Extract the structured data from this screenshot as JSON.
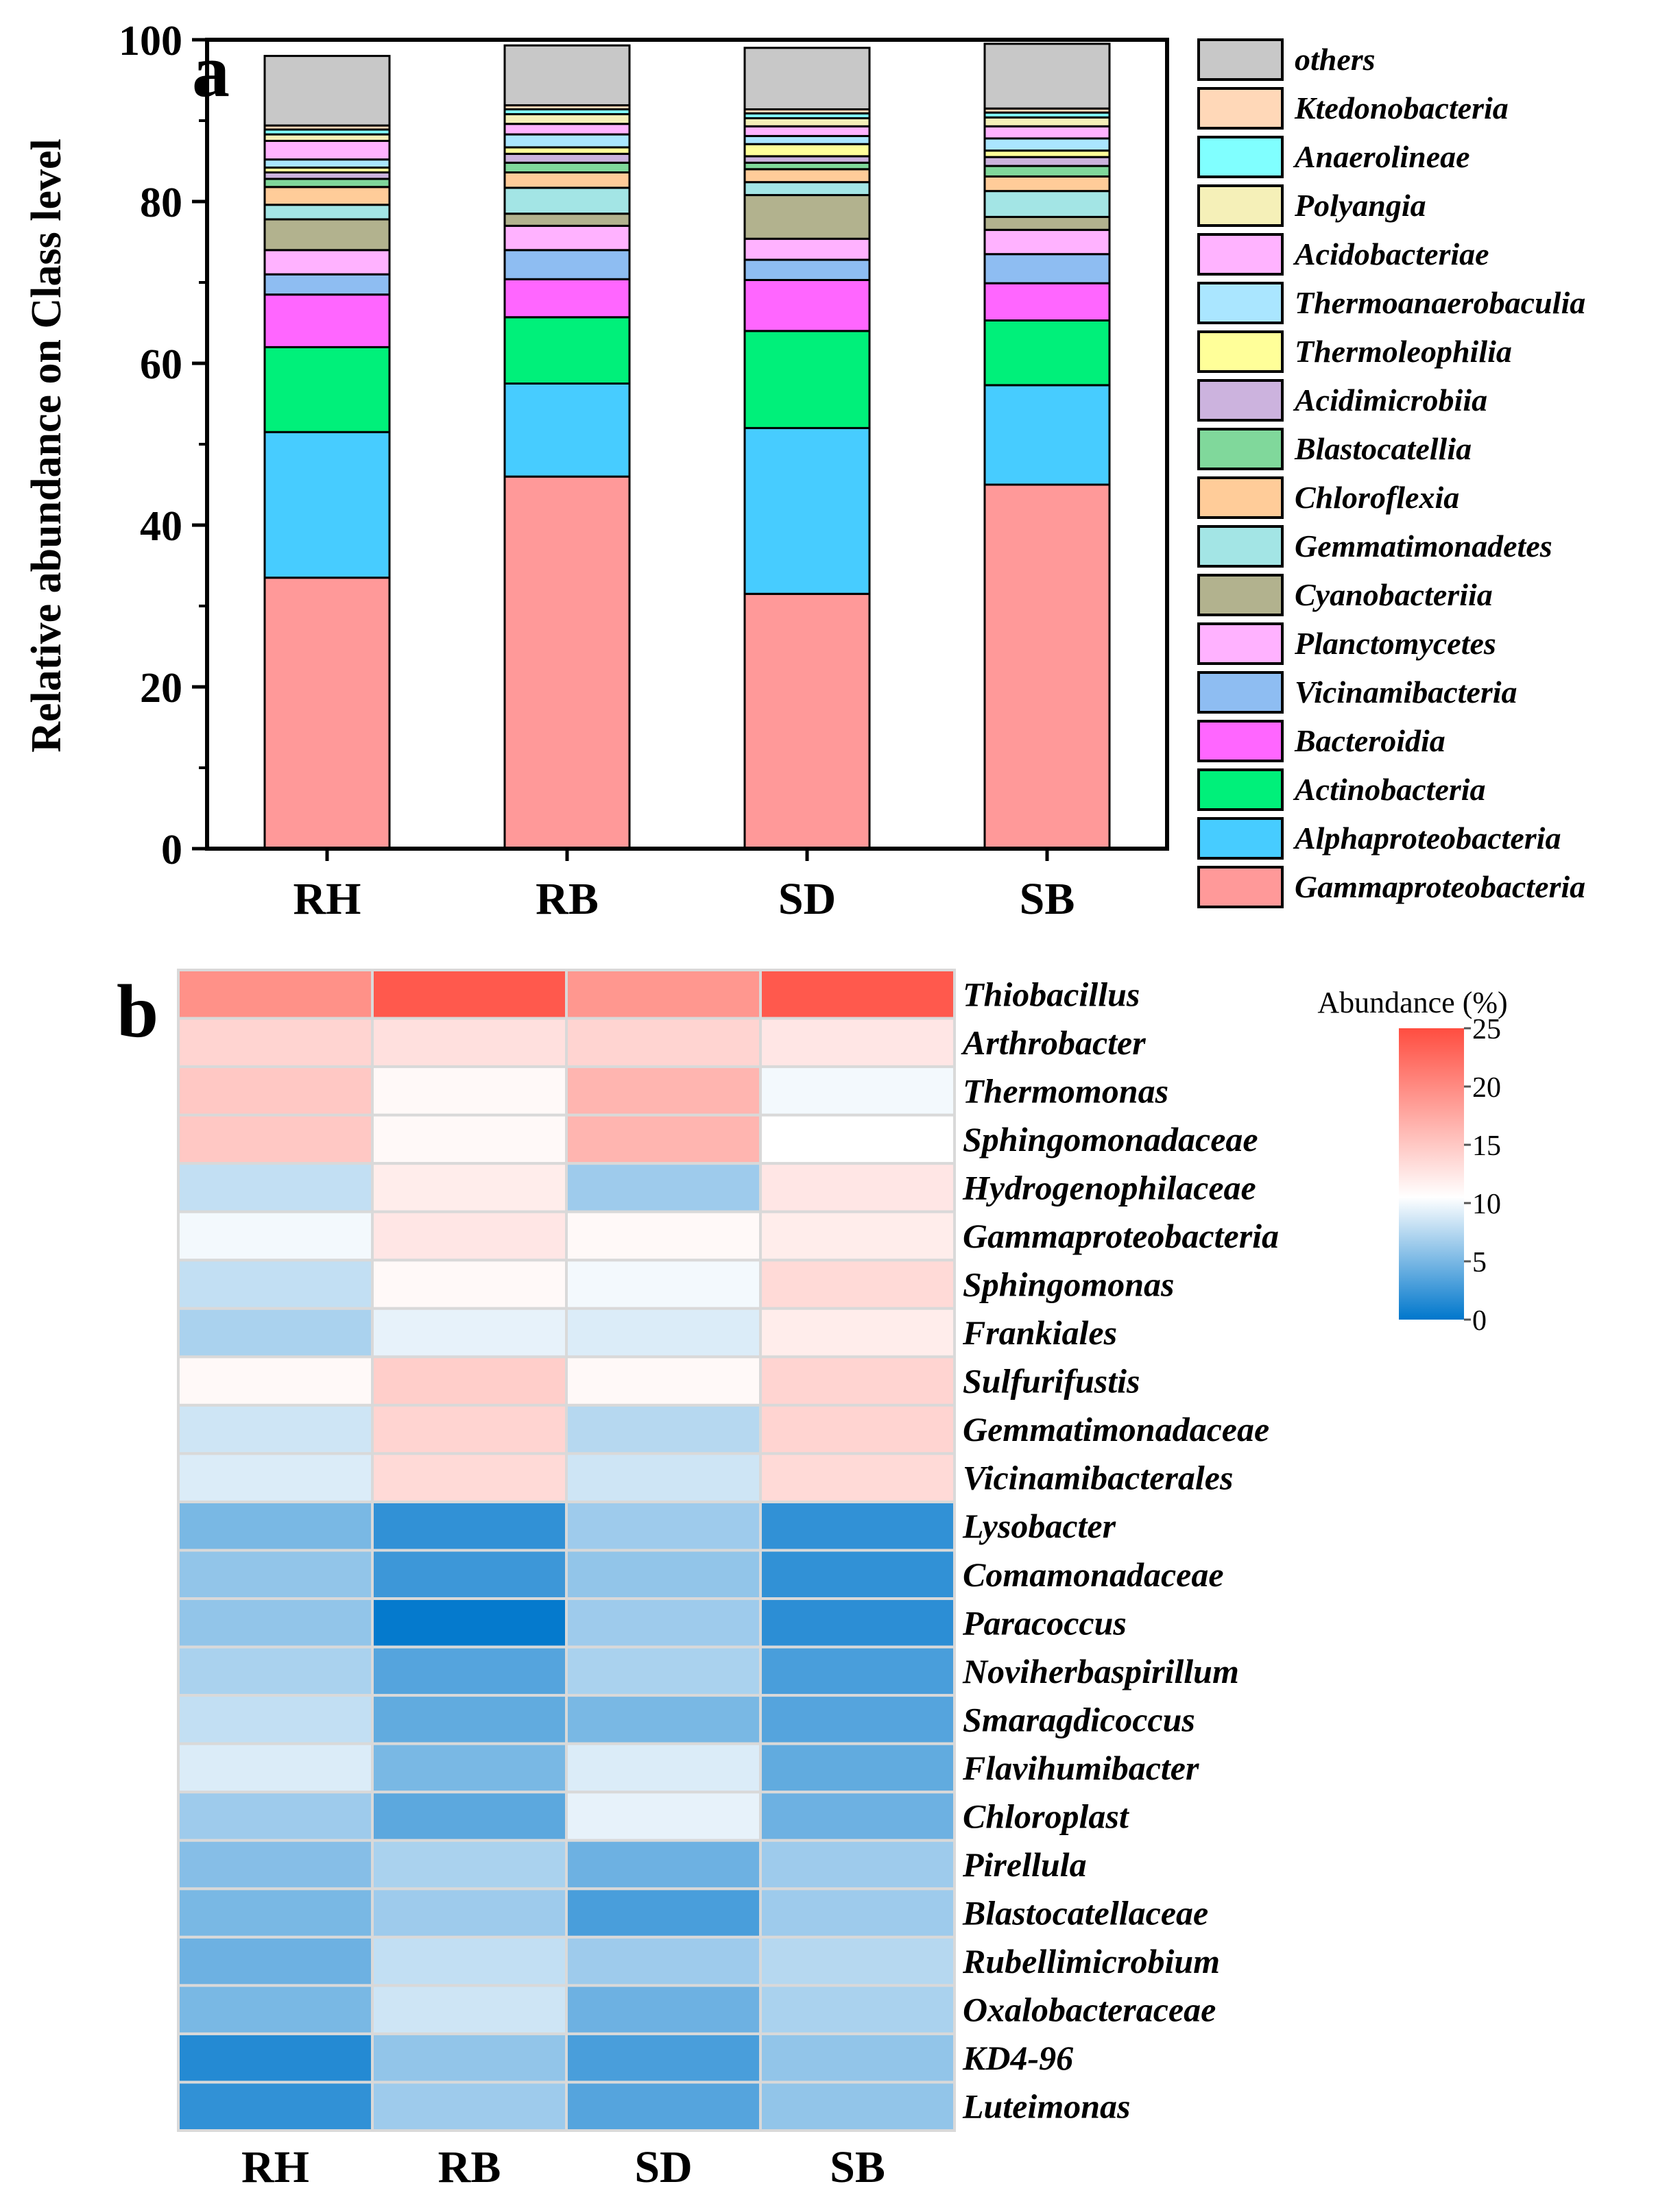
{
  "chart_data": [
    {
      "type": "bar",
      "stacked": true,
      "panel_label": "a",
      "categories": [
        "RH",
        "RB",
        "SD",
        "SB"
      ],
      "ylabel": "Relative abundance on Class level",
      "xlabel": "",
      "ylim": [
        0,
        100
      ],
      "yticks": [
        0,
        20,
        40,
        60,
        80,
        100
      ],
      "legend_position": "right",
      "series": [
        {
          "name": "Gammaproteobacteria",
          "color": "#FF9999",
          "values": [
            33.5,
            46.0,
            31.5,
            45.0
          ]
        },
        {
          "name": "Alphaproteobacteria",
          "color": "#47CCFF",
          "values": [
            18.0,
            11.5,
            20.5,
            12.3
          ]
        },
        {
          "name": "Actinobacteria",
          "color": "#00F07A",
          "values": [
            10.5,
            8.2,
            12.0,
            8.0
          ]
        },
        {
          "name": "Bacteroidia",
          "color": "#FF66FF",
          "values": [
            6.5,
            4.7,
            6.3,
            4.6
          ]
        },
        {
          "name": "Vicinamibacteria",
          "color": "#8EBDF2",
          "values": [
            2.5,
            3.6,
            2.5,
            3.6
          ]
        },
        {
          "name": "Planctomycetes",
          "color": "#FFB2FF",
          "values": [
            3.0,
            3.0,
            2.6,
            3.0
          ]
        },
        {
          "name": "Cyanobacteriia",
          "color": "#B2B28E",
          "values": [
            3.8,
            1.5,
            5.4,
            1.6
          ]
        },
        {
          "name": "Gemmatimonadetes",
          "color": "#A3E5E5",
          "values": [
            1.8,
            3.2,
            1.6,
            3.2
          ]
        },
        {
          "name": "Chloroflexia",
          "color": "#FFCC99",
          "values": [
            2.2,
            1.9,
            1.6,
            1.8
          ]
        },
        {
          "name": "Blastocatellia",
          "color": "#80D89B",
          "values": [
            1.0,
            1.2,
            0.8,
            1.3
          ]
        },
        {
          "name": "Acidimicrobiia",
          "color": "#CCB3DE",
          "values": [
            0.8,
            1.1,
            0.8,
            1.1
          ]
        },
        {
          "name": "Thermoleophilia",
          "color": "#FFFF99",
          "values": [
            0.6,
            0.8,
            1.5,
            0.8
          ]
        },
        {
          "name": "Thermoanaerobaculia",
          "color": "#AAE6FF",
          "values": [
            1.0,
            1.6,
            1.0,
            1.5
          ]
        },
        {
          "name": "Acidobacteriae",
          "color": "#FFB3FF",
          "values": [
            2.3,
            1.3,
            1.2,
            1.5
          ]
        },
        {
          "name": "Polyangia",
          "color": "#F5F0B8",
          "values": [
            0.8,
            1.2,
            1.0,
            1.1
          ]
        },
        {
          "name": "Anaerolineae",
          "color": "#80FFFF",
          "values": [
            0.6,
            0.6,
            0.6,
            0.6
          ]
        },
        {
          "name": "Ktedonobacteria",
          "color": "#FFD8B8",
          "values": [
            0.5,
            0.5,
            0.5,
            0.5
          ]
        },
        {
          "name": "others",
          "color": "#C8C8C8",
          "values": [
            8.6,
            7.4,
            7.6,
            8.0
          ]
        }
      ]
    },
    {
      "type": "heatmap",
      "panel_label": "b",
      "x": [
        "RH",
        "RB",
        "SD",
        "SB"
      ],
      "y": [
        "Thiobacillus",
        "Arthrobacter",
        "Thermomonas",
        "Sphingomonadaceae",
        "Hydrogenophilaceae",
        "Gammaproteobacteria",
        "Sphingomonas",
        "Frankiales",
        "Sulfurifustis",
        "Gemmatimonadaceae",
        "Vicinamibacterales",
        "Lysobacter",
        "Comamonadaceae",
        "Paracoccus",
        "Noviherbaspirillum",
        "Smaragdicoccus",
        "Flavihumibacter",
        "Chloroplast",
        "Pirellula",
        "Blastocatellaceae",
        "Rubellimicrobium",
        "Oxalobacteraceae",
        "KD4-96",
        "Luteimonas"
      ],
      "values": [
        [
          19.5,
          24.0,
          19.0,
          24.0
        ],
        [
          14.0,
          13.0,
          14.0,
          12.5
        ],
        [
          15.0,
          11.0,
          16.5,
          10.0
        ],
        [
          15.0,
          11.0,
          16.5,
          10.5
        ],
        [
          8.0,
          12.0,
          6.5,
          12.5
        ],
        [
          10.0,
          12.5,
          11.0,
          12.0
        ],
        [
          8.0,
          11.0,
          10.0,
          13.5
        ],
        [
          7.0,
          9.5,
          9.0,
          12.0
        ],
        [
          11.0,
          14.5,
          11.0,
          14.0
        ],
        [
          8.5,
          14.0,
          7.5,
          14.0
        ],
        [
          9.0,
          13.5,
          8.5,
          13.5
        ],
        [
          5.0,
          2.0,
          6.5,
          2.0
        ],
        [
          6.0,
          2.5,
          6.0,
          2.0
        ],
        [
          6.0,
          0.2,
          6.5,
          1.8
        ],
        [
          7.0,
          3.5,
          7.0,
          3.0
        ],
        [
          8.0,
          4.0,
          5.0,
          3.5
        ],
        [
          9.0,
          5.0,
          9.0,
          4.0
        ],
        [
          6.5,
          3.8,
          9.5,
          4.5
        ],
        [
          5.5,
          7.0,
          4.5,
          6.5
        ],
        [
          5.0,
          6.5,
          3.0,
          6.5
        ],
        [
          4.5,
          8.0,
          6.5,
          7.5
        ],
        [
          5.0,
          8.5,
          4.5,
          7.0
        ],
        [
          1.5,
          6.0,
          3.0,
          6.0
        ],
        [
          2.0,
          6.5,
          3.5,
          6.0
        ]
      ],
      "colorbar": {
        "title": "Abundance (%)",
        "min": 0,
        "max": 25,
        "ticks": [
          0,
          5,
          10,
          15,
          20,
          25
        ],
        "colors": [
          "#0077CC",
          "#FFFFFF",
          "#FF4D40"
        ]
      }
    }
  ]
}
